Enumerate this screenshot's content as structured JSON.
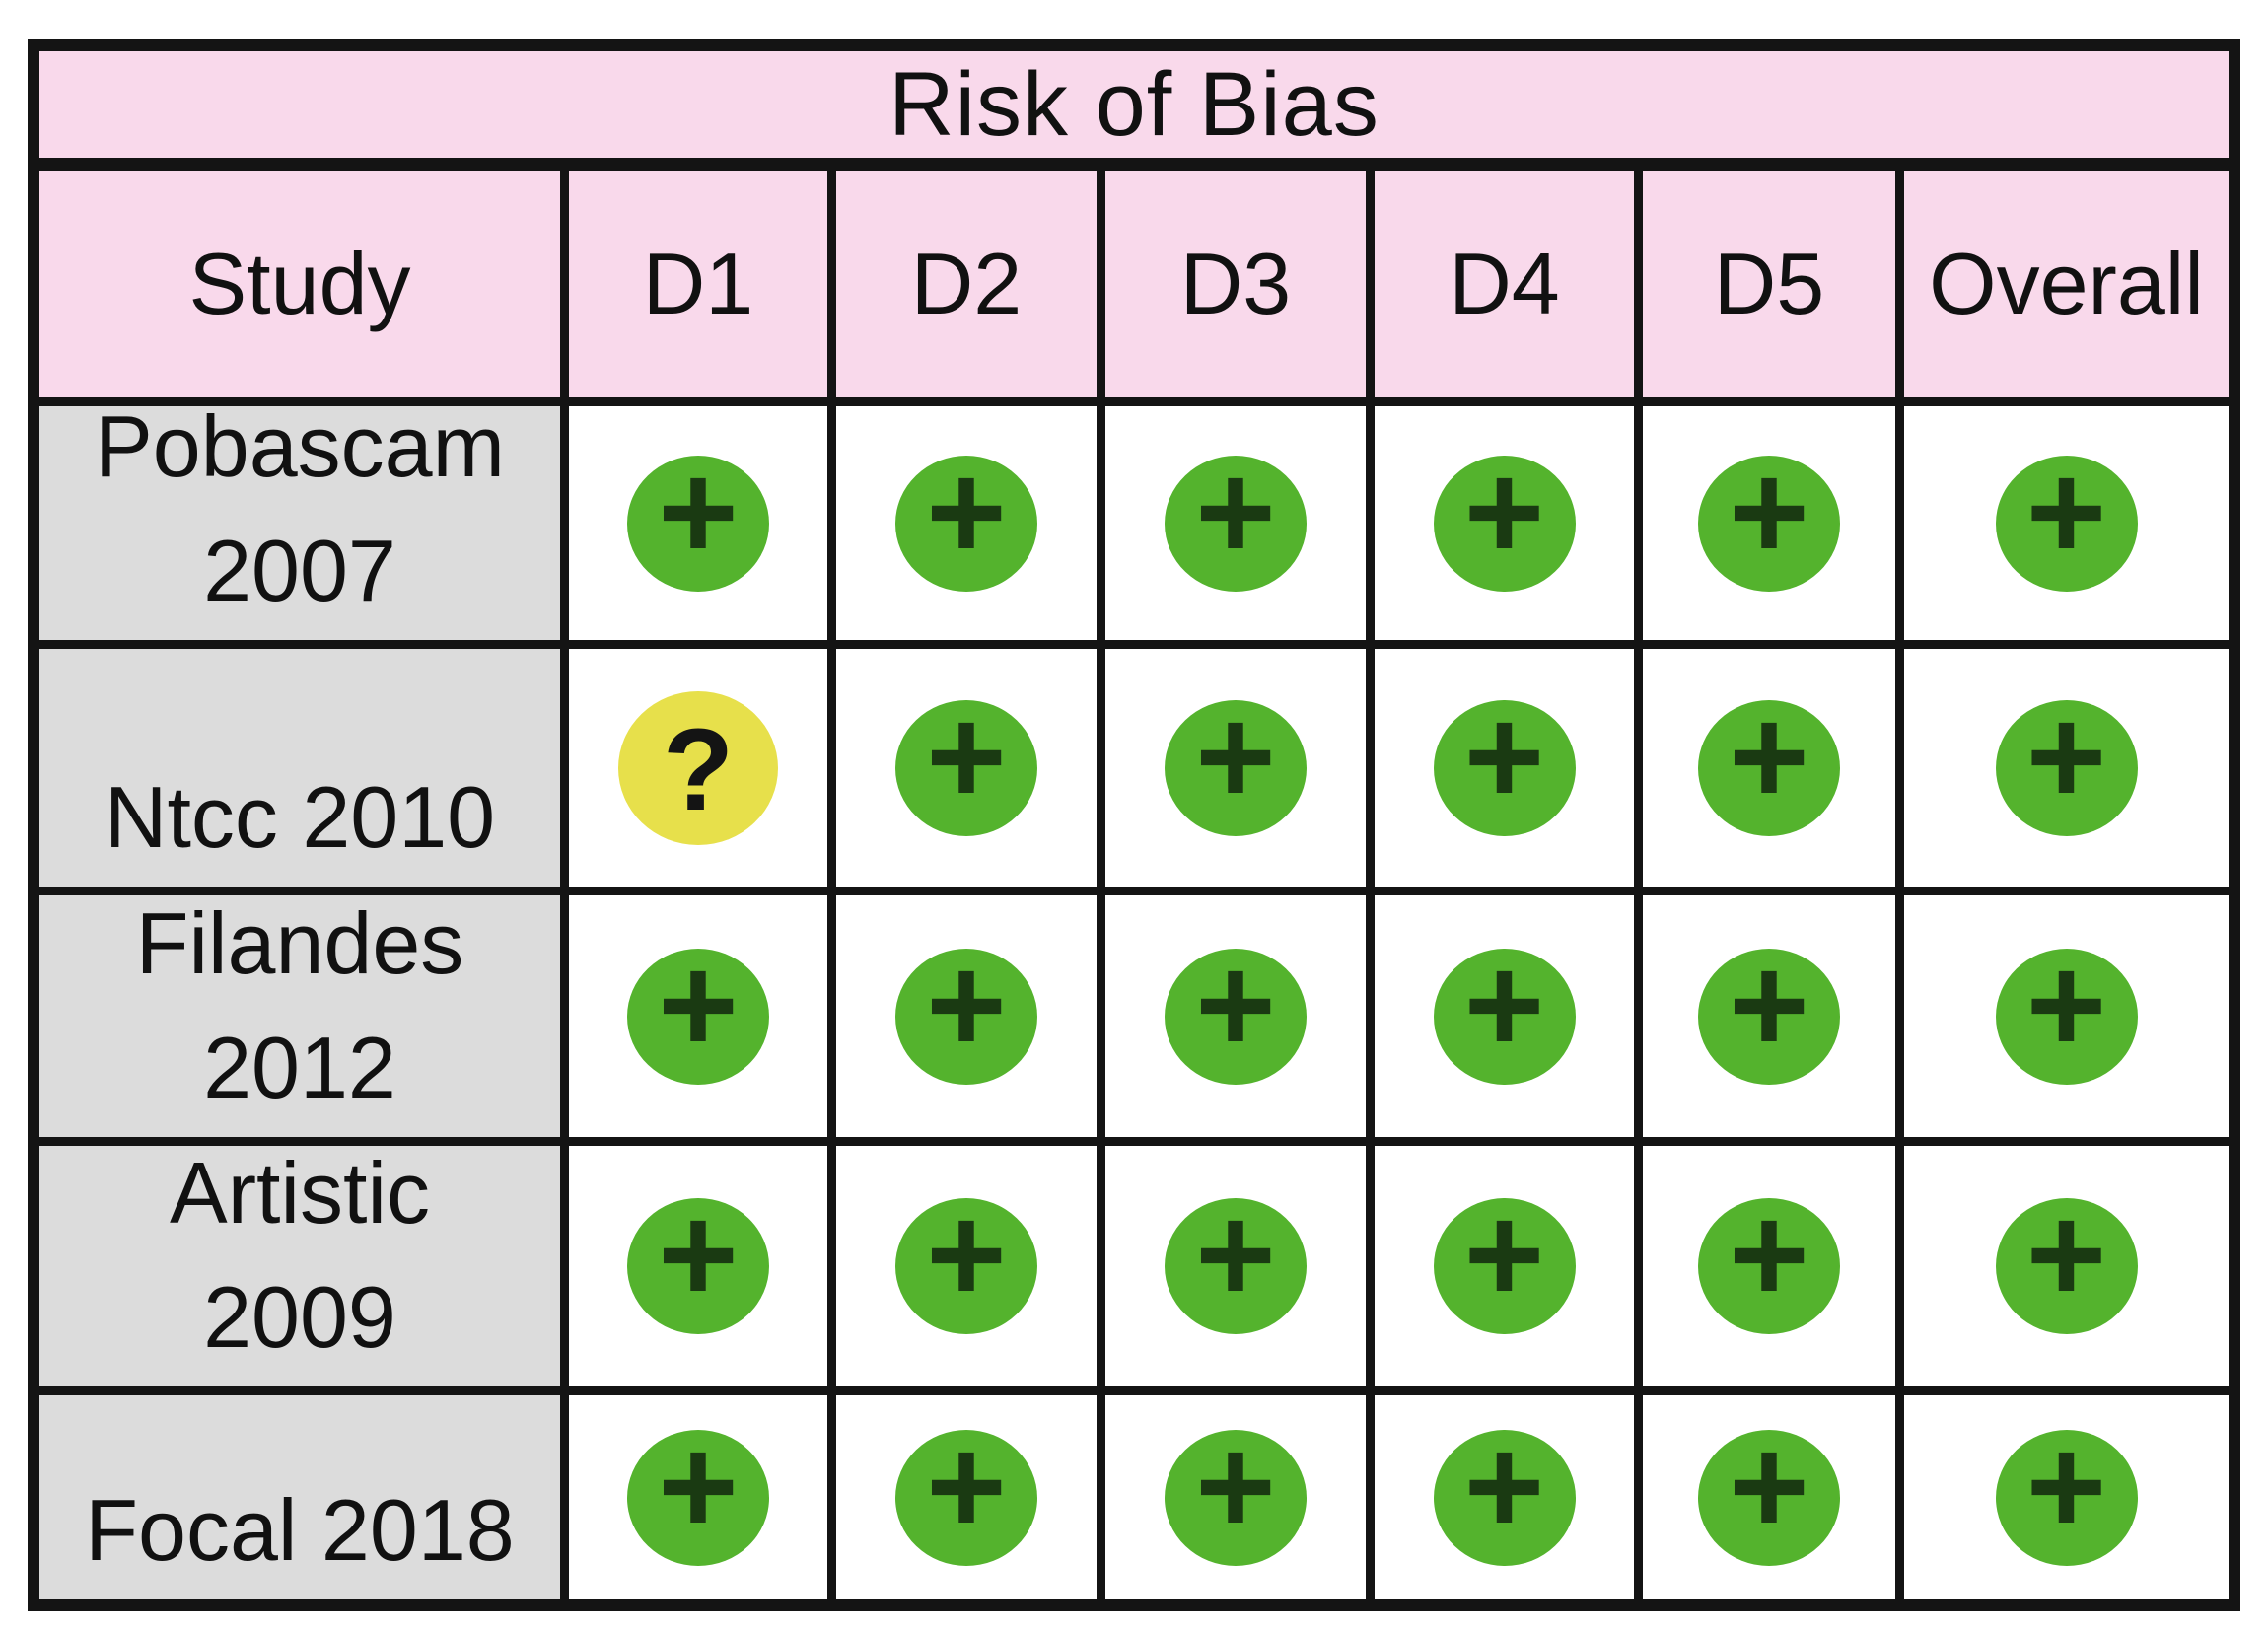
{
  "title": "Risk of Bias",
  "columns": [
    "Study",
    "D1",
    "D2",
    "D3",
    "D4",
    "D5",
    "Overall"
  ],
  "rows": [
    {
      "study_lines": [
        "Pobascam",
        "2007"
      ],
      "cells": [
        {
          "type": "low",
          "symbol": "+"
        },
        {
          "type": "low",
          "symbol": "+"
        },
        {
          "type": "low",
          "symbol": "+"
        },
        {
          "type": "low",
          "symbol": "+"
        },
        {
          "type": "low",
          "symbol": "+"
        },
        {
          "type": "low",
          "symbol": "+"
        }
      ]
    },
    {
      "study_lines": [
        "Ntcc 2010"
      ],
      "cells": [
        {
          "type": "unclear",
          "symbol": "?"
        },
        {
          "type": "low",
          "symbol": "+"
        },
        {
          "type": "low",
          "symbol": "+"
        },
        {
          "type": "low",
          "symbol": "+"
        },
        {
          "type": "low",
          "symbol": "+"
        },
        {
          "type": "low",
          "symbol": "+"
        }
      ]
    },
    {
      "study_lines": [
        "Filandes",
        "2012"
      ],
      "cells": [
        {
          "type": "low",
          "symbol": "+"
        },
        {
          "type": "low",
          "symbol": "+"
        },
        {
          "type": "low",
          "symbol": "+"
        },
        {
          "type": "low",
          "symbol": "+"
        },
        {
          "type": "low",
          "symbol": "+"
        },
        {
          "type": "low",
          "symbol": "+"
        }
      ]
    },
    {
      "study_lines": [
        "Artistic",
        "2009"
      ],
      "cells": [
        {
          "type": "low",
          "symbol": "+"
        },
        {
          "type": "low",
          "symbol": "+"
        },
        {
          "type": "low",
          "symbol": "+"
        },
        {
          "type": "low",
          "symbol": "+"
        },
        {
          "type": "low",
          "symbol": "+"
        },
        {
          "type": "low",
          "symbol": "+"
        }
      ]
    },
    {
      "study_lines": [
        "Focal 2018"
      ],
      "cells": [
        {
          "type": "low",
          "symbol": "+"
        },
        {
          "type": "low",
          "symbol": "+"
        },
        {
          "type": "low",
          "symbol": "+"
        },
        {
          "type": "low",
          "symbol": "+"
        },
        {
          "type": "low",
          "symbol": "+"
        },
        {
          "type": "low",
          "symbol": "+"
        }
      ]
    }
  ],
  "colors": {
    "header_pink": "#f9d9eb",
    "study_grey": "#dcdcdc",
    "low_risk_green": "#54b32d",
    "unclear_yellow": "#e7e04b",
    "plus_dark_green": "#1a3a12",
    "border_black": "#141414"
  }
}
